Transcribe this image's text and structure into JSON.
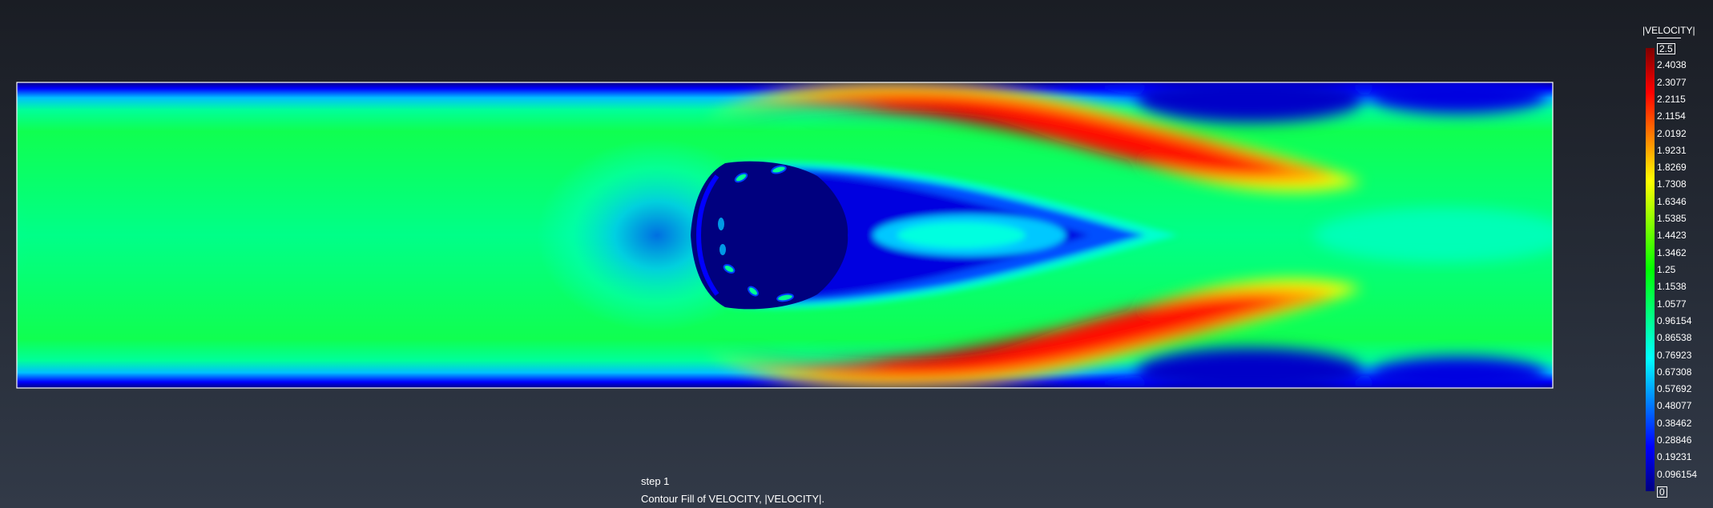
{
  "legend": {
    "title": "|VELOCITY|",
    "max_label": "2.5",
    "min_label": "0",
    "values": [
      "2.4038",
      "2.3077",
      "2.2115",
      "2.1154",
      "2.0192",
      "1.9231",
      "1.8269",
      "1.7308",
      "1.6346",
      "1.5385",
      "1.4423",
      "1.3462",
      "1.25",
      "1.1538",
      "1.0577",
      "0.96154",
      "0.86538",
      "0.76923",
      "0.67308",
      "0.57692",
      "0.48077",
      "0.38462",
      "0.28846",
      "0.19231",
      "0.096154"
    ],
    "range": [
      0,
      2.5
    ],
    "colormap": [
      "#00007f",
      "#0000ff",
      "#0080ff",
      "#00ffff",
      "#00ff7f",
      "#00ff00",
      "#80ff00",
      "#ffff00",
      "#ff8000",
      "#ff0000",
      "#7f0000"
    ]
  },
  "caption": {
    "step": "step 1",
    "description": "Contour Fill of VELOCITY, |VELOCITY|."
  },
  "colors": {
    "background_top": "#1a1d24",
    "background_bottom": "#323a48",
    "domain_border": "#ffffff"
  }
}
